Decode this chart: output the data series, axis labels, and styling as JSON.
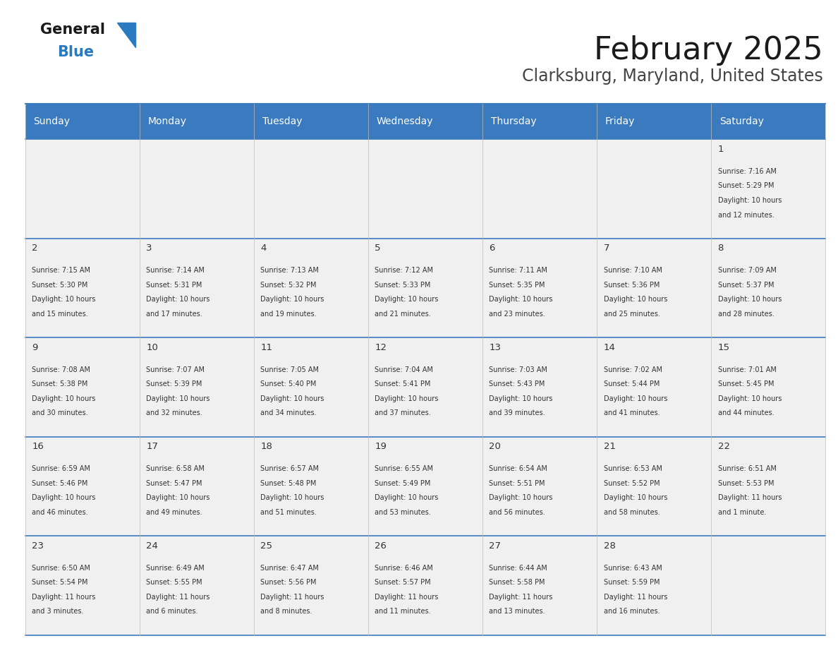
{
  "title": "February 2025",
  "subtitle": "Clarksburg, Maryland, United States",
  "header_bg": "#3a7abf",
  "header_text_color": "#ffffff",
  "cell_bg_light": "#f0f0f0",
  "separator_color": "#3a7abf",
  "grid_color": "#aaaaaa",
  "text_color": "#333333",
  "day_headers": [
    "Sunday",
    "Monday",
    "Tuesday",
    "Wednesday",
    "Thursday",
    "Friday",
    "Saturday"
  ],
  "days": [
    {
      "day": 1,
      "col": 6,
      "row": 0,
      "sunrise": "7:16 AM",
      "sunset": "5:29 PM",
      "daylight_hours": 10,
      "daylight_minutes": 12
    },
    {
      "day": 2,
      "col": 0,
      "row": 1,
      "sunrise": "7:15 AM",
      "sunset": "5:30 PM",
      "daylight_hours": 10,
      "daylight_minutes": 15
    },
    {
      "day": 3,
      "col": 1,
      "row": 1,
      "sunrise": "7:14 AM",
      "sunset": "5:31 PM",
      "daylight_hours": 10,
      "daylight_minutes": 17
    },
    {
      "day": 4,
      "col": 2,
      "row": 1,
      "sunrise": "7:13 AM",
      "sunset": "5:32 PM",
      "daylight_hours": 10,
      "daylight_minutes": 19
    },
    {
      "day": 5,
      "col": 3,
      "row": 1,
      "sunrise": "7:12 AM",
      "sunset": "5:33 PM",
      "daylight_hours": 10,
      "daylight_minutes": 21
    },
    {
      "day": 6,
      "col": 4,
      "row": 1,
      "sunrise": "7:11 AM",
      "sunset": "5:35 PM",
      "daylight_hours": 10,
      "daylight_minutes": 23
    },
    {
      "day": 7,
      "col": 5,
      "row": 1,
      "sunrise": "7:10 AM",
      "sunset": "5:36 PM",
      "daylight_hours": 10,
      "daylight_minutes": 25
    },
    {
      "day": 8,
      "col": 6,
      "row": 1,
      "sunrise": "7:09 AM",
      "sunset": "5:37 PM",
      "daylight_hours": 10,
      "daylight_minutes": 28
    },
    {
      "day": 9,
      "col": 0,
      "row": 2,
      "sunrise": "7:08 AM",
      "sunset": "5:38 PM",
      "daylight_hours": 10,
      "daylight_minutes": 30
    },
    {
      "day": 10,
      "col": 1,
      "row": 2,
      "sunrise": "7:07 AM",
      "sunset": "5:39 PM",
      "daylight_hours": 10,
      "daylight_minutes": 32
    },
    {
      "day": 11,
      "col": 2,
      "row": 2,
      "sunrise": "7:05 AM",
      "sunset": "5:40 PM",
      "daylight_hours": 10,
      "daylight_minutes": 34
    },
    {
      "day": 12,
      "col": 3,
      "row": 2,
      "sunrise": "7:04 AM",
      "sunset": "5:41 PM",
      "daylight_hours": 10,
      "daylight_minutes": 37
    },
    {
      "day": 13,
      "col": 4,
      "row": 2,
      "sunrise": "7:03 AM",
      "sunset": "5:43 PM",
      "daylight_hours": 10,
      "daylight_minutes": 39
    },
    {
      "day": 14,
      "col": 5,
      "row": 2,
      "sunrise": "7:02 AM",
      "sunset": "5:44 PM",
      "daylight_hours": 10,
      "daylight_minutes": 41
    },
    {
      "day": 15,
      "col": 6,
      "row": 2,
      "sunrise": "7:01 AM",
      "sunset": "5:45 PM",
      "daylight_hours": 10,
      "daylight_minutes": 44
    },
    {
      "day": 16,
      "col": 0,
      "row": 3,
      "sunrise": "6:59 AM",
      "sunset": "5:46 PM",
      "daylight_hours": 10,
      "daylight_minutes": 46
    },
    {
      "day": 17,
      "col": 1,
      "row": 3,
      "sunrise": "6:58 AM",
      "sunset": "5:47 PM",
      "daylight_hours": 10,
      "daylight_minutes": 49
    },
    {
      "day": 18,
      "col": 2,
      "row": 3,
      "sunrise": "6:57 AM",
      "sunset": "5:48 PM",
      "daylight_hours": 10,
      "daylight_minutes": 51
    },
    {
      "day": 19,
      "col": 3,
      "row": 3,
      "sunrise": "6:55 AM",
      "sunset": "5:49 PM",
      "daylight_hours": 10,
      "daylight_minutes": 53
    },
    {
      "day": 20,
      "col": 4,
      "row": 3,
      "sunrise": "6:54 AM",
      "sunset": "5:51 PM",
      "daylight_hours": 10,
      "daylight_minutes": 56
    },
    {
      "day": 21,
      "col": 5,
      "row": 3,
      "sunrise": "6:53 AM",
      "sunset": "5:52 PM",
      "daylight_hours": 10,
      "daylight_minutes": 58
    },
    {
      "day": 22,
      "col": 6,
      "row": 3,
      "sunrise": "6:51 AM",
      "sunset": "5:53 PM",
      "daylight_hours": 11,
      "daylight_minutes": 1
    },
    {
      "day": 23,
      "col": 0,
      "row": 4,
      "sunrise": "6:50 AM",
      "sunset": "5:54 PM",
      "daylight_hours": 11,
      "daylight_minutes": 3
    },
    {
      "day": 24,
      "col": 1,
      "row": 4,
      "sunrise": "6:49 AM",
      "sunset": "5:55 PM",
      "daylight_hours": 11,
      "daylight_minutes": 6
    },
    {
      "day": 25,
      "col": 2,
      "row": 4,
      "sunrise": "6:47 AM",
      "sunset": "5:56 PM",
      "daylight_hours": 11,
      "daylight_minutes": 8
    },
    {
      "day": 26,
      "col": 3,
      "row": 4,
      "sunrise": "6:46 AM",
      "sunset": "5:57 PM",
      "daylight_hours": 11,
      "daylight_minutes": 11
    },
    {
      "day": 27,
      "col": 4,
      "row": 4,
      "sunrise": "6:44 AM",
      "sunset": "5:58 PM",
      "daylight_hours": 11,
      "daylight_minutes": 13
    },
    {
      "day": 28,
      "col": 5,
      "row": 4,
      "sunrise": "6:43 AM",
      "sunset": "5:59 PM",
      "daylight_hours": 11,
      "daylight_minutes": 16
    }
  ]
}
